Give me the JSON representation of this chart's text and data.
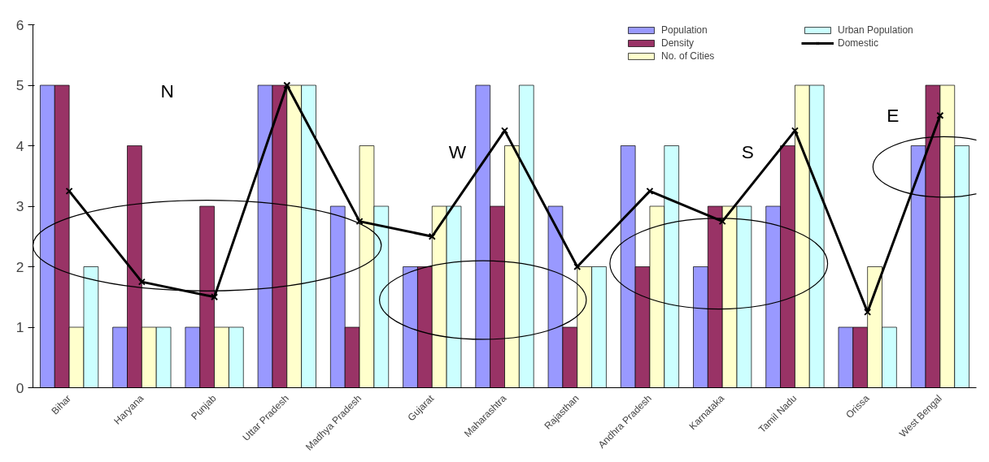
{
  "chart_data": {
    "type": "bar",
    "categories": [
      "Bihar",
      "Haryana",
      "Punjab",
      "Uttar Pradesh",
      "Madhya Pradesh",
      "Gujarat",
      "Maharashtra",
      "Rajasthan",
      "Andhra Pradesh",
      "Karnataka",
      "Tamil Nadu",
      "Orissa",
      "West Bengal"
    ],
    "series": [
      {
        "name": "Population",
        "color": "#9999ff",
        "values": [
          5,
          1,
          1,
          5,
          3,
          2,
          5,
          3,
          4,
          2,
          3,
          1,
          4
        ]
      },
      {
        "name": "Density",
        "color": "#993366",
        "values": [
          5,
          4,
          3,
          5,
          1,
          2,
          3,
          1,
          2,
          3,
          4,
          1,
          5
        ]
      },
      {
        "name": "No. of Cities",
        "color": "#ffffcc",
        "values": [
          1,
          1,
          1,
          5,
          4,
          3,
          4,
          2,
          3,
          3,
          5,
          2,
          5
        ]
      },
      {
        "name": "Urban Population",
        "color": "#ccffff",
        "values": [
          2,
          1,
          1,
          5,
          3,
          3,
          5,
          2,
          4,
          3,
          5,
          1,
          4
        ]
      },
      {
        "name": "Domestic",
        "type": "line",
        "color": "#000000",
        "marker": "cross",
        "values": [
          3.25,
          1.75,
          1.5,
          5,
          2.75,
          2.5,
          4.25,
          2,
          3.25,
          2.75,
          4.25,
          1.25,
          4.5
        ]
      }
    ],
    "ylim": [
      0,
      6
    ],
    "yticks": [
      0,
      1,
      2,
      3,
      4,
      5,
      6
    ],
    "annotations": [
      "N",
      "W",
      "S",
      "E"
    ],
    "grid": false,
    "legend": "top right"
  }
}
